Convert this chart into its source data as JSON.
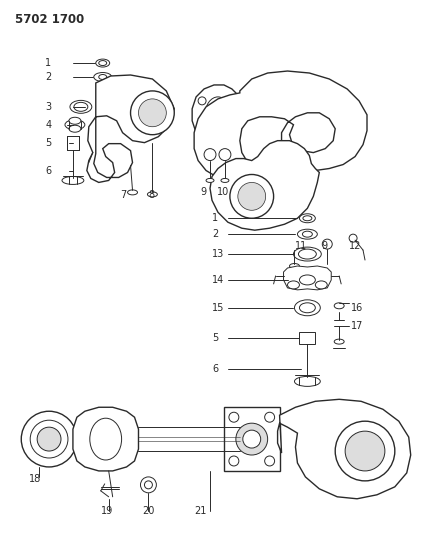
{
  "title": "5702 1700",
  "bg": "#ffffff",
  "lc": "#2a2a2a",
  "fig_w": 4.28,
  "fig_h": 5.33,
  "dpi": 100
}
